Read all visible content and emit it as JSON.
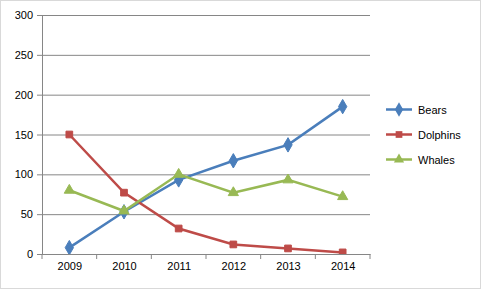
{
  "chart_data": {
    "type": "line",
    "categories": [
      "2009",
      "2010",
      "2011",
      "2012",
      "2013",
      "2014"
    ],
    "series": [
      {
        "name": "Bears",
        "color": "#4a7ebb",
        "marker": "diamond",
        "line_style": "solid",
        "values": [
          8,
          53,
          93,
          117,
          137,
          185
        ]
      },
      {
        "name": "Dolphins",
        "color": "#be4b48",
        "marker": "square",
        "line_style": "solid",
        "values": [
          150,
          77,
          32,
          12,
          7,
          2
        ]
      },
      {
        "name": "Whales",
        "color": "#98b954",
        "marker": "triangle",
        "line_style": "solid",
        "values": [
          80,
          54,
          100,
          77,
          93,
          72
        ]
      }
    ],
    "ylim": [
      0,
      300
    ],
    "yticks": [
      0,
      50,
      100,
      150,
      200,
      250,
      300
    ],
    "grid": true,
    "legend": "right"
  }
}
